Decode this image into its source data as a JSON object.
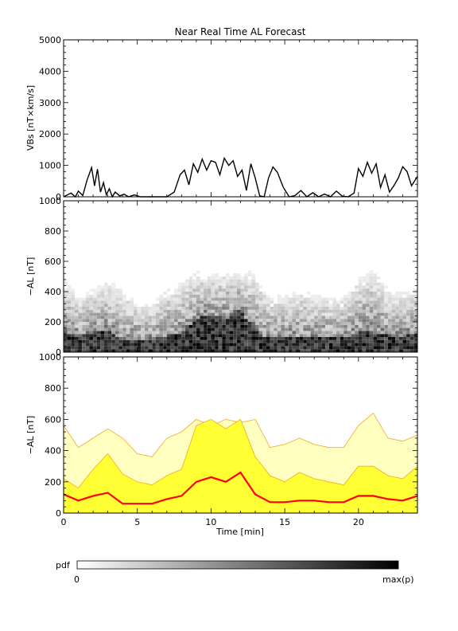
{
  "chart_data": [
    {
      "type": "line",
      "title": "Near Real Time AL Forecast",
      "ylabel": "VBs [nT×km/s]",
      "xlim": [
        0,
        24
      ],
      "ylim": [
        0,
        5000
      ],
      "yticks": [
        0,
        1000,
        2000,
        3000,
        4000,
        5000
      ],
      "line_color": "#000000",
      "series": [
        {
          "x": [
            0,
            0.5,
            0.8,
            1.0,
            1.3,
            1.6,
            1.9,
            2.1,
            2.3,
            2.5,
            2.7,
            2.9,
            3.1,
            3.3,
            3.5,
            3.8,
            4.1,
            4.4,
            4.8,
            5.2,
            5.6,
            6.0,
            6.5,
            7.0,
            7.5,
            7.9,
            8.2,
            8.5,
            8.8,
            9.1,
            9.4,
            9.7,
            10.0,
            10.3,
            10.6,
            10.9,
            11.2,
            11.5,
            11.8,
            12.1,
            12.4,
            12.7,
            13.0,
            13.3,
            13.6,
            13.9,
            14.2,
            14.5,
            14.9,
            15.3,
            15.7,
            16.1,
            16.5,
            16.9,
            17.3,
            17.7,
            18.1,
            18.5,
            18.9,
            19.3,
            19.7,
            20.0,
            20.3,
            20.6,
            20.9,
            21.2,
            21.5,
            21.8,
            22.1,
            22.4,
            22.7,
            23.0,
            23.3,
            23.6,
            24.0
          ],
          "y": [
            0,
            120,
            0,
            180,
            40,
            550,
            930,
            350,
            880,
            150,
            450,
            60,
            260,
            0,
            150,
            30,
            80,
            0,
            60,
            0,
            0,
            0,
            0,
            0,
            150,
            700,
            850,
            380,
            1050,
            780,
            1200,
            850,
            1150,
            1100,
            700,
            1230,
            1000,
            1150,
            650,
            850,
            200,
            1050,
            600,
            30,
            0,
            600,
            950,
            780,
            300,
            0,
            40,
            200,
            0,
            130,
            0,
            90,
            0,
            180,
            20,
            0,
            120,
            900,
            650,
            1100,
            750,
            1050,
            300,
            700,
            150,
            350,
            600,
            960,
            800,
            350,
            650
          ]
        }
      ]
    },
    {
      "type": "heatmap",
      "ylabel": "−AL [nT]",
      "xlim": [
        0,
        24
      ],
      "ylim": [
        0,
        1000
      ],
      "yticks": [
        0,
        200,
        400,
        600,
        800,
        1000
      ],
      "colorscale": [
        "#ffffff",
        "#000000"
      ]
    },
    {
      "type": "area",
      "xlabel": "Time [min]",
      "ylabel": "−AL [nT]",
      "xlim": [
        0,
        24
      ],
      "ylim": [
        0,
        1000
      ],
      "xticks": [
        0,
        5,
        10,
        15,
        20
      ],
      "yticks": [
        0,
        200,
        400,
        600,
        800,
        1000
      ],
      "colors": {
        "outer": "#ffffc0",
        "inner": "#ffff33",
        "edge": "#f5a623",
        "median": "#ff0000"
      },
      "x": [
        0,
        1,
        2,
        3,
        4,
        5,
        6,
        7,
        8,
        9,
        10,
        11,
        12,
        13,
        14,
        15,
        16,
        17,
        18,
        19,
        20,
        21,
        22,
        23,
        24
      ],
      "median": [
        120,
        80,
        110,
        130,
        60,
        60,
        60,
        90,
        110,
        200,
        230,
        200,
        260,
        120,
        70,
        70,
        80,
        80,
        70,
        70,
        110,
        110,
        90,
        80,
        110
      ],
      "band_inner": [
        220,
        160,
        280,
        380,
        250,
        200,
        180,
        240,
        280,
        560,
        600,
        540,
        600,
        360,
        240,
        200,
        260,
        220,
        200,
        180,
        300,
        300,
        240,
        220,
        300
      ],
      "band_outer": [
        560,
        420,
        480,
        540,
        480,
        380,
        360,
        480,
        520,
        600,
        560,
        600,
        580,
        600,
        420,
        440,
        480,
        440,
        420,
        420,
        560,
        640,
        480,
        460,
        500
      ]
    }
  ],
  "colorbar": {
    "label": "pdf",
    "min_label": "0",
    "max_label": "max(p)"
  }
}
